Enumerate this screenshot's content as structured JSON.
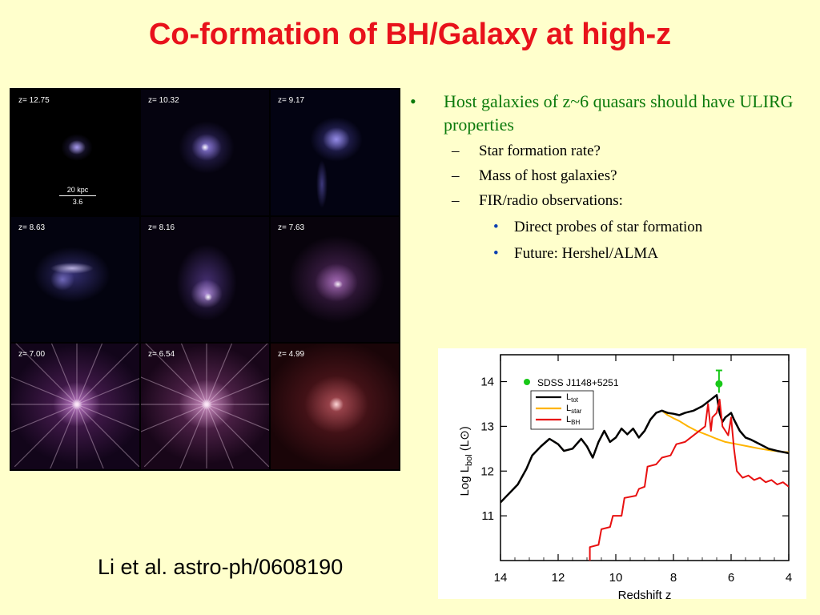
{
  "slide": {
    "title": "Co-formation of BH/Galaxy at high-z",
    "citation": "Li et al. astro-ph/0608190"
  },
  "simulation": {
    "panels": [
      {
        "label": "z= 12.75",
        "style": "compact-blue"
      },
      {
        "label": "z= 10.32",
        "style": "diffuse-blue"
      },
      {
        "label": "z= 9.17",
        "style": "tail-blue"
      },
      {
        "label": "z= 8.63",
        "style": "stream-blue"
      },
      {
        "label": "z= 8.16",
        "style": "stream-purple"
      },
      {
        "label": "z= 7.63",
        "style": "diffuse-purple"
      },
      {
        "label": "z= 7.00",
        "style": "starburst-purple"
      },
      {
        "label": "z= 6.54",
        "style": "starburst-pink"
      },
      {
        "label": "z= 4.99",
        "style": "glow-red"
      }
    ],
    "scalebar": {
      "length": "20 kpc",
      "value": "3.6"
    }
  },
  "bullets": [
    {
      "level": 1,
      "marker": "•",
      "text": "Host galaxies of z~6 quasars should have ULIRG properties"
    },
    {
      "level": 2,
      "marker": "–",
      "text": "Star formation rate?"
    },
    {
      "level": 2,
      "marker": "–",
      "text": "Mass of host galaxies?"
    },
    {
      "level": 2,
      "marker": "–",
      "text": "FIR/radio observations:"
    },
    {
      "level": 3,
      "marker": "•",
      "text": "Direct probes of star formation"
    },
    {
      "level": 3,
      "marker": "•",
      "text": "Future: Hershel/ALMA"
    }
  ],
  "chart_data": {
    "type": "line",
    "xlabel": "Redshift  z",
    "ylabel": "Log L",
    "ylabel_sub": "bol",
    "ylabel_unit": "(L⊙)",
    "xlim": [
      14,
      4
    ],
    "ylim": [
      10,
      14.6
    ],
    "xticks": [
      14,
      12,
      10,
      8,
      6,
      4
    ],
    "yticks": [
      11,
      12,
      13,
      14
    ],
    "legend": [
      {
        "main": "L",
        "sub": "tot",
        "color": "#000000"
      },
      {
        "main": "L",
        "sub": "star",
        "color": "#FFB400"
      },
      {
        "main": "L",
        "sub": "BH",
        "color": "#E81010"
      }
    ],
    "observation": {
      "label": "SDSS J1148+5251",
      "x": 6.42,
      "y": 13.95,
      "err": [
        13.75,
        14.25
      ],
      "color": "#18C818"
    },
    "series": [
      {
        "name": "star",
        "color": "#FFB400",
        "width": 2,
        "x": [
          14,
          13.7,
          13.4,
          13.1,
          12.9,
          12.6,
          12.3,
          12.0,
          11.8,
          11.5,
          11.2,
          11.0,
          10.8,
          10.6,
          10.4,
          10.2,
          10.0,
          9.8,
          9.6,
          9.4,
          9.2,
          9.0,
          8.8,
          8.6,
          8.4,
          8.2,
          8.0,
          7.8,
          7.5,
          7.2,
          6.8,
          6.5,
          6.2,
          5.8,
          5.4,
          5.0,
          4.6,
          4.2,
          4.0
        ],
        "y": [
          11.3,
          11.5,
          11.7,
          12.05,
          12.35,
          12.55,
          12.72,
          12.6,
          12.45,
          12.5,
          12.72,
          12.55,
          12.3,
          12.65,
          12.9,
          12.65,
          12.75,
          12.95,
          12.82,
          12.95,
          12.75,
          12.9,
          13.15,
          13.3,
          13.35,
          13.25,
          13.18,
          13.12,
          13.0,
          12.9,
          12.8,
          12.72,
          12.65,
          12.6,
          12.55,
          12.5,
          12.46,
          12.43,
          12.42
        ]
      },
      {
        "name": "tot",
        "color": "#000000",
        "width": 2.5,
        "x": [
          14,
          13.7,
          13.4,
          13.1,
          12.9,
          12.6,
          12.3,
          12.0,
          11.8,
          11.5,
          11.2,
          11.0,
          10.8,
          10.6,
          10.4,
          10.2,
          10.0,
          9.8,
          9.6,
          9.4,
          9.2,
          9.0,
          8.8,
          8.6,
          8.4,
          8.2,
          8.0,
          7.8,
          7.6,
          7.3,
          7.0,
          6.8,
          6.6,
          6.5,
          6.4,
          6.3,
          6.2,
          6.0,
          5.9,
          5.7,
          5.5,
          5.3,
          5.0,
          4.7,
          4.4,
          4.0
        ],
        "y": [
          11.3,
          11.5,
          11.7,
          12.05,
          12.35,
          12.55,
          12.72,
          12.6,
          12.45,
          12.5,
          12.72,
          12.55,
          12.3,
          12.65,
          12.9,
          12.65,
          12.75,
          12.95,
          12.82,
          12.95,
          12.75,
          12.9,
          13.15,
          13.3,
          13.35,
          13.3,
          13.28,
          13.25,
          13.3,
          13.35,
          13.45,
          13.55,
          13.65,
          13.7,
          13.3,
          13.1,
          13.2,
          13.3,
          13.15,
          12.9,
          12.75,
          12.7,
          12.6,
          12.5,
          12.45,
          12.4
        ]
      },
      {
        "name": "BH",
        "color": "#E81010",
        "width": 2,
        "x": [
          10.9,
          10.9,
          10.6,
          10.5,
          10.2,
          10.1,
          9.8,
          9.7,
          9.3,
          9.2,
          9.0,
          8.9,
          8.6,
          8.4,
          8.1,
          7.9,
          7.6,
          7.3,
          7.0,
          6.9,
          6.8,
          6.7,
          6.65,
          6.5,
          6.4,
          6.3,
          6.2,
          6.1,
          6.0,
          5.9,
          5.8,
          5.6,
          5.4,
          5.2,
          5.0,
          4.8,
          4.6,
          4.4,
          4.2,
          4.0
        ],
        "y": [
          10.0,
          10.3,
          10.35,
          10.7,
          10.75,
          11.0,
          11.0,
          11.4,
          11.45,
          11.6,
          11.65,
          12.1,
          12.15,
          12.3,
          12.35,
          12.6,
          12.65,
          12.8,
          12.95,
          13.0,
          13.5,
          12.9,
          13.2,
          13.3,
          13.6,
          13.0,
          12.9,
          12.8,
          13.2,
          12.5,
          12.0,
          11.85,
          11.9,
          11.8,
          11.85,
          11.75,
          11.8,
          11.7,
          11.75,
          11.65
        ]
      }
    ]
  }
}
